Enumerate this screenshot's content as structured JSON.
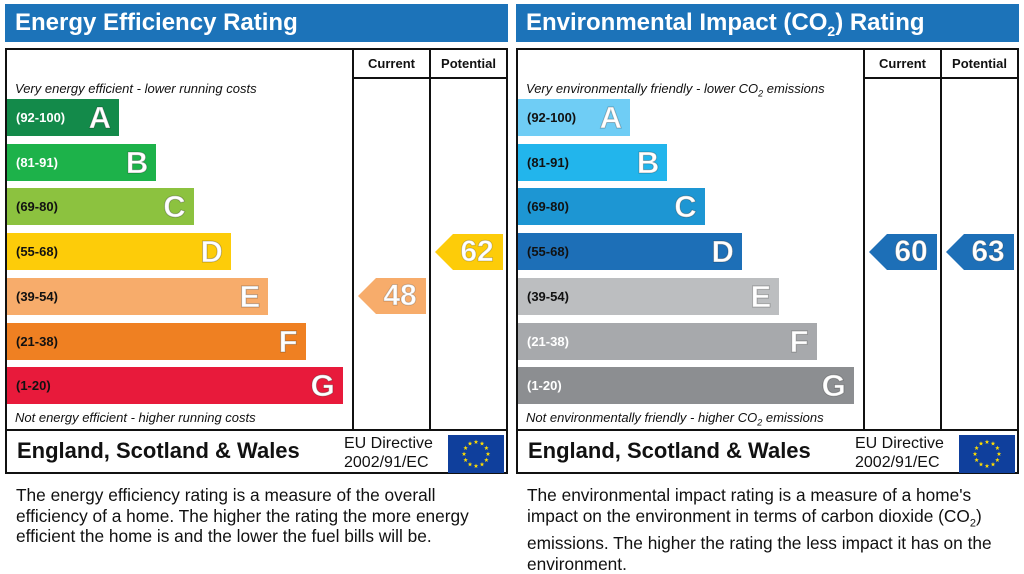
{
  "chart_data": [
    {
      "type": "bar",
      "title": "Energy Efficiency Rating",
      "column_headers": [
        "Current",
        "Potential"
      ],
      "top_note": "Very energy efficient - lower running costs",
      "bottom_note": "Not energy efficient - higher running costs",
      "bands": [
        {
          "range": "(92-100)",
          "letter": "A",
          "color": "#138a4a",
          "label_color": "#ffffff"
        },
        {
          "range": "(81-91)",
          "letter": "B",
          "color": "#1db24a",
          "label_color": "#ffffff"
        },
        {
          "range": "(69-80)",
          "letter": "C",
          "color": "#8cc23f",
          "label_color": "#111111"
        },
        {
          "range": "(55-68)",
          "letter": "D",
          "color": "#fdcc09",
          "label_color": "#111111"
        },
        {
          "range": "(39-54)",
          "letter": "E",
          "color": "#f7ac6b",
          "label_color": "#111111"
        },
        {
          "range": "(21-38)",
          "letter": "F",
          "color": "#ef8022",
          "label_color": "#111111"
        },
        {
          "range": "(1-20)",
          "letter": "G",
          "color": "#e81a3b",
          "label_color": "#111111"
        }
      ],
      "current": {
        "value": 48,
        "band": "E",
        "color": "#f7ac6b"
      },
      "potential": {
        "value": 62,
        "band": "D",
        "color": "#fdcc09"
      },
      "region": "England, Scotland & Wales",
      "directive_line1": "EU Directive",
      "directive_line2": "2002/91/EC",
      "description": "The energy efficiency rating is a measure of the overall efficiency of a home. The higher the rating the more energy efficient the home is and the lower the fuel bills will be."
    },
    {
      "type": "bar",
      "title_pre": "Environmental Impact (CO",
      "title_sub": "2",
      "title_post": ") Rating",
      "column_headers": [
        "Current",
        "Potential"
      ],
      "top_note_pre": "Very environmentally friendly - lower CO",
      "top_note_sub": "2",
      "top_note_post": " emissions",
      "bottom_note_pre": "Not environmentally friendly - higher CO",
      "bottom_note_sub": "2",
      "bottom_note_post": " emissions",
      "bands": [
        {
          "range": "(92-100)",
          "letter": "A",
          "color": "#6fcdf5",
          "label_color": "#111111"
        },
        {
          "range": "(81-91)",
          "letter": "B",
          "color": "#22b5ec",
          "label_color": "#111111"
        },
        {
          "range": "(69-80)",
          "letter": "C",
          "color": "#1d96d3",
          "label_color": "#111111"
        },
        {
          "range": "(55-68)",
          "letter": "D",
          "color": "#1d6fb7",
          "label_color": "#111111"
        },
        {
          "range": "(39-54)",
          "letter": "E",
          "color": "#bcbec0",
          "label_color": "#111111"
        },
        {
          "range": "(21-38)",
          "letter": "F",
          "color": "#a7a9ac",
          "label_color": "#ffffff"
        },
        {
          "range": "(1-20)",
          "letter": "G",
          "color": "#8c8e91",
          "label_color": "#ffffff"
        }
      ],
      "current": {
        "value": 60,
        "band": "D",
        "color": "#1d6fb7"
      },
      "potential": {
        "value": 63,
        "band": "D",
        "color": "#1d6fb7"
      },
      "region": "England, Scotland & Wales",
      "directive_line1": "EU Directive",
      "directive_line2": "2002/91/EC",
      "description_pre": "The environmental impact rating is a measure of a home's impact on the environment in terms of carbon dioxide (CO",
      "description_sub": "2",
      "description_post": ") emissions. The higher the rating the less impact it has on the environment."
    }
  ],
  "flag_colors": {
    "field": "#0f3f9c",
    "stars": "#ffdd00"
  }
}
